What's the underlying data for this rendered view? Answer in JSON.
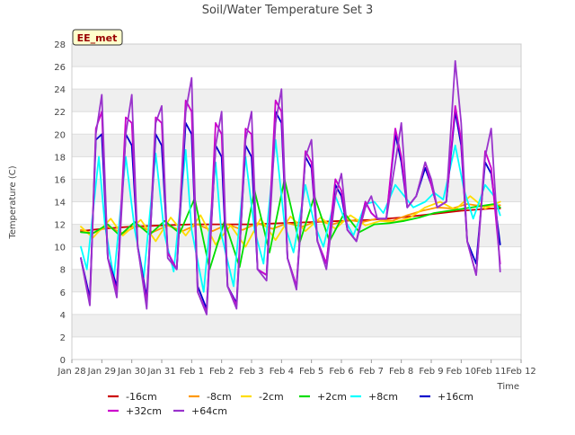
{
  "chart_data": {
    "type": "line",
    "title": "Soil/Water Temperature Set 3",
    "xlabel": "Time",
    "ylabel": "Temperature (C)",
    "ylim": [
      0,
      28
    ],
    "yticks": [
      0,
      2,
      4,
      6,
      8,
      10,
      12,
      14,
      16,
      18,
      20,
      22,
      24,
      26,
      28
    ],
    "xlim_days": [
      0,
      15
    ],
    "xtick_labels": [
      "Jan 28",
      "Jan 29",
      "Jan 30",
      "Jan 31",
      "Feb 1",
      "Feb 2",
      "Feb 3",
      "Feb 4",
      "Feb 5",
      "Feb 6",
      "Feb 7",
      "Feb 8",
      "Feb 9",
      "Feb 10",
      "Feb 11",
      "Feb 12"
    ],
    "grid": "horizontal bands",
    "station_badge": "EE_met",
    "legend_placement": "bottom",
    "series": [
      {
        "name": "-16cm",
        "color": "#cc0000",
        "x": [
          0.3,
          1,
          2,
          3,
          4,
          5,
          6,
          7,
          8,
          9,
          10,
          11,
          12,
          13,
          14,
          14.3
        ],
        "y": [
          11.4,
          11.6,
          11.8,
          11.9,
          12.0,
          12.0,
          12.0,
          12.1,
          12.2,
          12.3,
          12.4,
          12.6,
          12.9,
          13.2,
          13.4,
          13.4
        ]
      },
      {
        "name": "-8cm",
        "color": "#ff9900",
        "x": [
          0.3,
          0.7,
          1.2,
          1.7,
          2.2,
          2.7,
          3.2,
          3.7,
          4.2,
          4.7,
          5.2,
          5.7,
          6.2,
          6.7,
          7.2,
          7.7,
          8.2,
          8.7,
          9.2,
          9.7,
          10.2,
          10.7,
          11.2,
          11.7,
          12.2,
          12.7,
          13.2,
          13.7,
          14.3
        ],
        "y": [
          11.5,
          11.2,
          11.8,
          11.2,
          11.9,
          11.3,
          11.9,
          11.4,
          12.0,
          11.4,
          12.0,
          11.5,
          12.1,
          11.6,
          12.1,
          11.8,
          12.3,
          12.0,
          12.4,
          12.2,
          12.5,
          12.3,
          12.8,
          13.2,
          13.5,
          13.4,
          13.8,
          13.6,
          13.7
        ]
      },
      {
        "name": "-2cm",
        "color": "#ffdd00",
        "x": [
          0.3,
          0.7,
          1.3,
          1.7,
          2.3,
          2.8,
          3.3,
          3.8,
          4.3,
          4.8,
          5.3,
          5.8,
          6.3,
          6.8,
          7.3,
          7.8,
          8.3,
          8.8,
          9.3,
          9.8,
          10.3,
          10.8,
          11.3,
          11.8,
          12.3,
          12.8,
          13.3,
          13.8,
          14.3
        ],
        "y": [
          11.8,
          10.8,
          12.5,
          11.0,
          12.4,
          10.5,
          12.6,
          11.0,
          12.8,
          10.2,
          11.9,
          10.0,
          12.5,
          10.6,
          12.7,
          11.4,
          12.6,
          11.6,
          12.8,
          11.9,
          12.3,
          12.2,
          12.6,
          13.5,
          14.0,
          13.3,
          14.5,
          13.4,
          14.0
        ]
      },
      {
        "name": "+2cm",
        "color": "#00dd00",
        "x": [
          0.3,
          0.7,
          1.2,
          1.6,
          2.1,
          2.6,
          3.1,
          3.6,
          4.1,
          4.6,
          5.1,
          5.6,
          6.1,
          6.6,
          7.1,
          7.6,
          8.1,
          8.6,
          9.1,
          9.6,
          10.1,
          10.6,
          11.1,
          11.6,
          12.1,
          12.6,
          13.1,
          13.6,
          14.1,
          14.3
        ],
        "y": [
          11.3,
          11.2,
          12.0,
          11.0,
          12.2,
          11.1,
          12.3,
          11.2,
          14.3,
          8.0,
          12.3,
          8.2,
          15.0,
          9.5,
          16.0,
          10.3,
          14.5,
          10.5,
          13.0,
          11.3,
          12.0,
          12.1,
          12.3,
          12.6,
          13.0,
          13.2,
          13.4,
          13.6,
          13.8,
          13.5
        ]
      },
      {
        "name": "+8cm",
        "color": "#00ffff",
        "x": [
          0.3,
          0.5,
          0.9,
          1.1,
          1.4,
          1.8,
          2.1,
          2.4,
          2.8,
          3.1,
          3.4,
          3.8,
          4.0,
          4.4,
          4.8,
          5.0,
          5.4,
          5.8,
          6.1,
          6.4,
          6.8,
          7.1,
          7.4,
          7.8,
          8.1,
          8.4,
          8.8,
          9.1,
          9.4,
          9.8,
          10.1,
          10.4,
          10.8,
          11.1,
          11.4,
          11.8,
          12.1,
          12.4,
          12.8,
          13.1,
          13.4,
          13.8,
          14.1,
          14.3
        ],
        "y": [
          10.0,
          8.0,
          18.0,
          12.0,
          7.2,
          18.0,
          11.5,
          7.3,
          18.3,
          11.0,
          7.8,
          18.6,
          11.5,
          6.0,
          17.5,
          11.0,
          6.5,
          18.0,
          11.5,
          8.5,
          19.5,
          12.0,
          9.5,
          15.5,
          12.0,
          10.0,
          14.5,
          12.5,
          11.0,
          13.8,
          14.0,
          13.0,
          15.5,
          14.5,
          13.5,
          14.0,
          14.8,
          14.2,
          19.0,
          15.0,
          12.5,
          15.5,
          14.5,
          12.8
        ]
      },
      {
        "name": "+16cm",
        "color": "#0000cc",
        "x": [
          0.3,
          0.6,
          0.8,
          1.0,
          1.2,
          1.5,
          1.8,
          2.0,
          2.2,
          2.5,
          2.8,
          3.0,
          3.2,
          3.5,
          3.8,
          4.0,
          4.2,
          4.5,
          4.8,
          5.0,
          5.2,
          5.5,
          5.8,
          6.0,
          6.2,
          6.5,
          6.8,
          7.0,
          7.2,
          7.5,
          7.8,
          8.0,
          8.2,
          8.5,
          8.8,
          9.0,
          9.2,
          9.5,
          9.8,
          10.0,
          10.2,
          10.5,
          10.8,
          11.0,
          11.2,
          11.5,
          11.8,
          12.0,
          12.2,
          12.5,
          12.8,
          13.0,
          13.2,
          13.5,
          13.8,
          14.0,
          14.3
        ],
        "y": [
          9.0,
          5.5,
          19.5,
          20.0,
          9.0,
          6.5,
          20.0,
          19.0,
          10.0,
          5.5,
          20.0,
          19.0,
          9.5,
          8.0,
          21.0,
          20.0,
          6.5,
          4.5,
          19.0,
          18.0,
          6.5,
          5.0,
          19.0,
          18.0,
          8.0,
          7.5,
          22.0,
          21.0,
          9.0,
          6.5,
          18.0,
          17.0,
          10.5,
          8.5,
          15.5,
          14.5,
          11.5,
          10.5,
          14.0,
          13.0,
          12.5,
          12.5,
          20.0,
          17.5,
          13.5,
          14.5,
          17.0,
          15.5,
          13.5,
          14.0,
          22.0,
          19.0,
          10.5,
          8.5,
          17.5,
          16.5,
          10.2
        ]
      },
      {
        "name": "+32cm",
        "color": "#cc00cc",
        "x": [
          0.3,
          0.6,
          0.8,
          1.0,
          1.2,
          1.5,
          1.8,
          2.0,
          2.2,
          2.5,
          2.8,
          3.0,
          3.2,
          3.5,
          3.8,
          4.0,
          4.2,
          4.5,
          4.8,
          5.0,
          5.2,
          5.5,
          5.8,
          6.0,
          6.2,
          6.5,
          6.8,
          7.0,
          7.2,
          7.5,
          7.8,
          8.0,
          8.2,
          8.5,
          8.8,
          9.0,
          9.2,
          9.5,
          9.8,
          10.0,
          10.2,
          10.5,
          10.8,
          11.0,
          11.2,
          11.5,
          11.8,
          12.0,
          12.2,
          12.5,
          12.8,
          13.0,
          13.2,
          13.5,
          13.8,
          14.0,
          14.3
        ],
        "y": [
          9.0,
          5.0,
          20.5,
          22.0,
          9.0,
          6.0,
          21.5,
          21.0,
          10.0,
          5.0,
          21.5,
          21.0,
          9.5,
          8.0,
          23.0,
          22.0,
          6.0,
          4.2,
          21.0,
          20.0,
          6.5,
          4.8,
          20.5,
          20.0,
          8.0,
          7.5,
          23.0,
          22.0,
          9.0,
          6.5,
          18.5,
          17.5,
          10.5,
          8.5,
          16.0,
          15.0,
          11.5,
          10.5,
          14.0,
          13.0,
          12.5,
          12.5,
          20.5,
          18.0,
          13.5,
          14.5,
          17.5,
          15.5,
          13.5,
          14.0,
          22.5,
          19.5,
          10.5,
          7.5,
          18.5,
          17.0,
          8.5
        ]
      },
      {
        "name": "+64cm",
        "color": "#9933cc",
        "x": [
          0.3,
          0.6,
          0.8,
          1.0,
          1.2,
          1.5,
          1.8,
          2.0,
          2.2,
          2.5,
          2.8,
          3.0,
          3.2,
          3.5,
          3.8,
          4.0,
          4.2,
          4.5,
          4.8,
          5.0,
          5.2,
          5.5,
          5.8,
          6.0,
          6.2,
          6.5,
          6.8,
          7.0,
          7.2,
          7.5,
          7.8,
          8.0,
          8.2,
          8.5,
          8.8,
          9.0,
          9.2,
          9.5,
          9.8,
          10.0,
          10.2,
          10.5,
          10.8,
          11.0,
          11.2,
          11.5,
          11.8,
          12.0,
          12.2,
          12.5,
          12.8,
          13.0,
          13.2,
          13.5,
          13.8,
          14.0,
          14.3
        ],
        "y": [
          9.0,
          4.8,
          20.0,
          23.5,
          9.0,
          5.5,
          20.0,
          23.5,
          10.0,
          4.5,
          21.0,
          22.5,
          9.0,
          8.0,
          22.0,
          25.0,
          6.0,
          4.0,
          19.0,
          22.0,
          6.5,
          4.5,
          19.5,
          22.0,
          8.0,
          7.0,
          21.0,
          24.0,
          9.0,
          6.2,
          18.0,
          19.5,
          10.5,
          8.0,
          14.5,
          16.5,
          11.5,
          10.5,
          13.5,
          14.5,
          12.5,
          12.5,
          17.5,
          21.0,
          13.5,
          14.5,
          17.5,
          16.0,
          13.5,
          14.0,
          26.5,
          21.0,
          10.5,
          7.5,
          18.0,
          20.5,
          7.8
        ]
      }
    ]
  }
}
